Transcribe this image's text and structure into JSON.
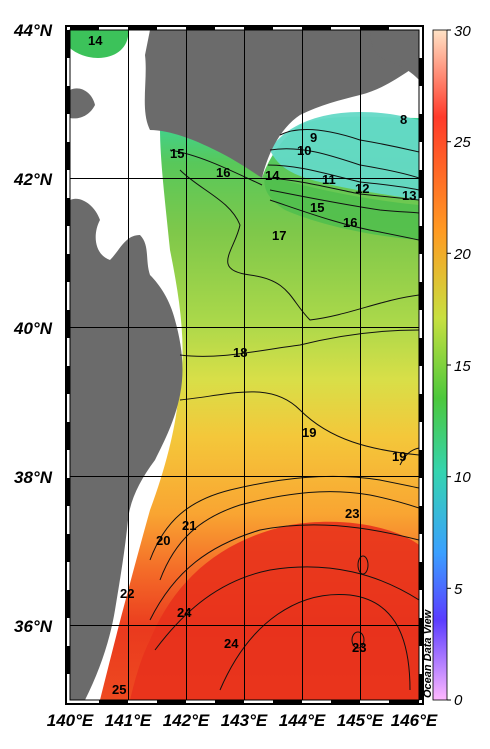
{
  "map": {
    "lat_labels": [
      "44°N",
      "42°N",
      "40°N",
      "38°N",
      "36°N"
    ],
    "lon_labels": [
      "140°E",
      "141°E",
      "142°E",
      "143°E",
      "144°E",
      "145°E",
      "146°E"
    ],
    "colorbar": {
      "ticks": [
        "30",
        "25",
        "20",
        "15",
        "10",
        "5",
        "0"
      ],
      "range": [
        0,
        30
      ],
      "watermark": "Ocean Data View",
      "colors": [
        "#ffd9b0",
        "#ff3020",
        "#ff9a20",
        "#ffd23a",
        "#b8e040",
        "#2fbf3a",
        "#3fdcb0",
        "#3a8cff",
        "#5a3cff",
        "#ff9cff"
      ]
    },
    "contour_labels": [
      "14",
      "15",
      "16",
      "14",
      "9",
      "10",
      "11",
      "12",
      "13",
      "8",
      "15",
      "16",
      "17",
      "18",
      "19",
      "19",
      "20",
      "21",
      "22",
      "23",
      "24",
      "24",
      "23",
      "25"
    ],
    "colors": {
      "land": "#6b6b6b",
      "grid": "#000000",
      "warm": "#ee3a1c",
      "orange": "#f7a22e",
      "yellow": "#e2e050",
      "green": "#74c44a",
      "cyan": "#5fd8c8"
    }
  }
}
